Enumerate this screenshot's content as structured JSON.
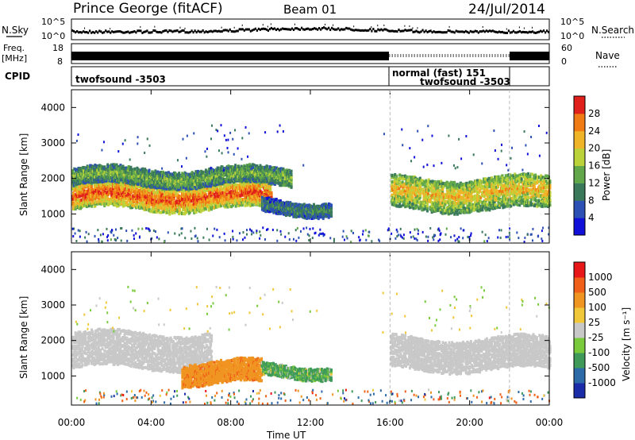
{
  "header": {
    "station": "Prince George (fitACF)",
    "beam": "Beam 01",
    "date": "24/Jul/2014"
  },
  "noise_panel": {
    "left_label": "N.Sky",
    "right_label": "N.Search",
    "left_ticks": [
      "10^5",
      "10^0"
    ],
    "right_ticks": [
      "10^5",
      "10^0"
    ]
  },
  "freq_panel": {
    "left_label_1": "Freq.",
    "left_label_2": "[MHz]",
    "left_ticks": [
      "18",
      "8"
    ],
    "right_label": "Nave",
    "right_ticks": [
      "60",
      "0"
    ]
  },
  "cpid_panel": {
    "label": "CPID",
    "segments": [
      {
        "start_hour": 0,
        "end_hour": 16,
        "text": "twofsound -3503"
      },
      {
        "start_hour": 16,
        "end_hour": 22,
        "text": "normal (fast) 151"
      },
      {
        "start_hour": 16,
        "end_hour": 22,
        "text": "twofsound -3503"
      }
    ]
  },
  "power_panel": {
    "ylabel": "Slant Range [km]",
    "yticks": [
      "4000",
      "3000",
      "2000",
      "1000"
    ],
    "colorbar_label": "Power [dB]",
    "colorbar_ticks": [
      "28",
      "24",
      "20",
      "16",
      "12",
      "8",
      "4"
    ],
    "colors": [
      "#1010d8",
      "#2c50b4",
      "#3a7a5a",
      "#62a84a",
      "#bcd23a",
      "#f0b428",
      "#f07a14",
      "#e0201a"
    ]
  },
  "velocity_panel": {
    "ylabel": "Slant Range [km]",
    "yticks": [
      "4000",
      "3000",
      "2000",
      "1000"
    ],
    "colorbar_label": "Velocity [m s⁻¹]",
    "colorbar_ticks": [
      "1000",
      "500",
      "100",
      "25",
      "-25",
      "-100",
      "-500",
      "-1000"
    ],
    "colors": [
      "#1a2ca8",
      "#2d6aa8",
      "#3f9a5a",
      "#7acb3c",
      "#c8c8c8",
      "#f0c83a",
      "#f09422",
      "#f06018",
      "#e81818"
    ]
  },
  "x_axis": {
    "ticks": [
      "00:00",
      "04:00",
      "08:00",
      "12:00",
      "16:00",
      "20:00",
      "00:00"
    ],
    "label": "Time UT"
  },
  "chart_data": [
    {
      "type": "heatmap",
      "title": "Power",
      "xlabel": "Time UT",
      "ylabel": "Slant Range [km]",
      "xlim": [
        0,
        24
      ],
      "ylim": [
        180,
        4500
      ],
      "colorbar": {
        "label": "Power [dB]",
        "range": [
          0,
          30
        ]
      },
      "features": [
        {
          "name": "E-region/ground band",
          "t0": 0,
          "t1": 10,
          "r_center": 1500,
          "r_width": 700,
          "power": 26
        },
        {
          "name": "mid band",
          "t0": 0,
          "t1": 11,
          "r_center": 2050,
          "r_width": 450,
          "power": 14
        },
        {
          "name": "descending band",
          "t0": 9.5,
          "t1": 13,
          "r_center": 1200,
          "r_width": 350,
          "power": 10
        },
        {
          "name": "evening band",
          "t0": 16,
          "t1": 24,
          "r_center": 1600,
          "r_width": 900,
          "power": 20
        }
      ]
    },
    {
      "type": "heatmap",
      "title": "Velocity",
      "xlabel": "Time UT",
      "ylabel": "Slant Range [km]",
      "xlim": [
        0,
        24
      ],
      "ylim": [
        180,
        4500
      ],
      "colorbar": {
        "label": "Velocity [m s-1]",
        "range": [
          -1000,
          1000
        ]
      },
      "features": [
        {
          "name": "ground scatter",
          "t0": 0,
          "t1": 7,
          "r_center": 1750,
          "r_width": 1000,
          "velocity": 0
        },
        {
          "name": "negative flow",
          "t0": 5.5,
          "t1": 9.5,
          "r_center": 1100,
          "r_width": 600,
          "velocity": -200
        },
        {
          "name": "positive flow",
          "t0": 9.5,
          "t1": 13,
          "r_center": 1150,
          "r_width": 300,
          "velocity": 100
        },
        {
          "name": "evening ground scatter",
          "t0": 16,
          "t1": 24,
          "r_center": 1650,
          "r_width": 900,
          "velocity": 0
        }
      ]
    }
  ]
}
